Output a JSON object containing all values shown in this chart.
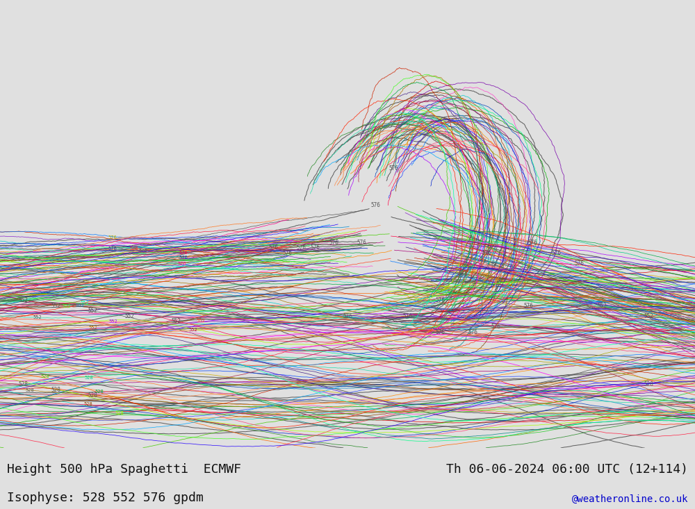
{
  "title_left": "Height 500 hPa Spaghetti  ECMWF",
  "title_right": "Th 06-06-2024 06:00 UTC (12+114)",
  "subtitle": "Isophyse: 528 552 576 gpdm",
  "watermark": "@weatheronline.co.uk",
  "bg_color": "#e0e0e0",
  "ocean_color": "#e0e0e0",
  "land_color": "#c8f0a0",
  "land_edge_color": "#888888",
  "contour_color_det": "#555555",
  "contour_linewidth_det": 0.75,
  "ensemble_linewidth": 0.55,
  "font_color": "#111111",
  "watermark_color": "#0000cc",
  "lon_min": 60,
  "lon_max": 210,
  "lat_min": -75,
  "lat_max": 10,
  "figsize": [
    10.0,
    7.33
  ],
  "dpi": 100,
  "ensemble_colors": [
    "#555555",
    "#dd0000",
    "#ff6600",
    "#ccaa00",
    "#00aa00",
    "#00cccc",
    "#0044ff",
    "#aa00ff",
    "#ff0088",
    "#884400",
    "#008888",
    "#ff8800",
    "#22cc22",
    "#cc2200",
    "#0088cc",
    "#ff44cc",
    "#442288",
    "#ff2200",
    "#00cc88",
    "#2244ff",
    "#ff8800",
    "#aa7700",
    "#228822",
    "#8822cc",
    "#ff0044",
    "#0022cc",
    "#aa4400",
    "#44cc00",
    "#aa0077",
    "#0077ff",
    "#ff7722",
    "#22ddaa",
    "#ff2244",
    "#4400cc",
    "#00aaff",
    "#ff4422",
    "#aaff00",
    "#ff00ff",
    "#00ff88",
    "#ff2200",
    "#0044bb",
    "#aa2244",
    "#44ff22",
    "#7700aa",
    "#ff8844",
    "#00aa44",
    "#ff4477",
    "#2200ff",
    "#aaaa00",
    "#00ffaa"
  ]
}
